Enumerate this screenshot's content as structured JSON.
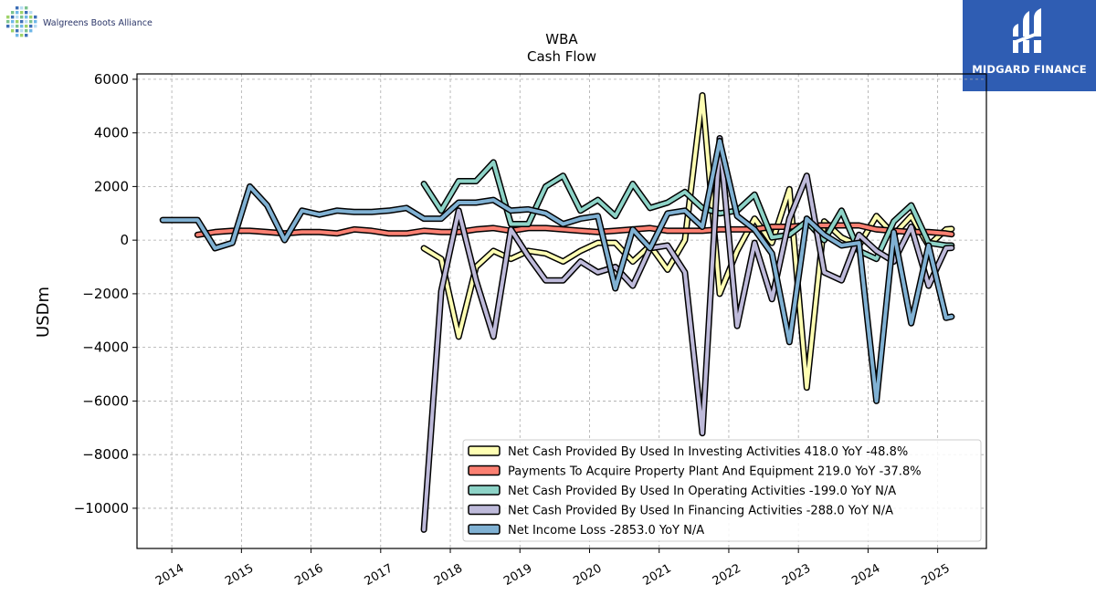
{
  "branding": {
    "company_logo_text": "Walgreens Boots Alliance",
    "publisher_logo_text": "MIDGARD FINANCE"
  },
  "colors": {
    "investing": "#ffffb3",
    "capex": "#fb8072",
    "operating": "#8dd3c7",
    "financing": "#bebada",
    "net_income": "#80b1d3",
    "publisher_bg": "#2f5db3"
  },
  "chart_data": {
    "type": "line",
    "title": "WBA",
    "subtitle": "Cash Flow",
    "xlabel": "",
    "ylabel": "USDm",
    "xlim": [
      2013.5,
      2025.7
    ],
    "ylim": [
      -11500,
      6200
    ],
    "x_ticks": [
      2014,
      2015,
      2016,
      2017,
      2018,
      2019,
      2020,
      2021,
      2022,
      2023,
      2024,
      2025
    ],
    "y_ticks": [
      6000,
      4000,
      2000,
      0,
      -2000,
      -4000,
      -6000,
      -8000,
      -10000
    ],
    "y_tick_labels": [
      "6000",
      "4000",
      "2000",
      "0",
      "−2000",
      "−4000",
      "−6000",
      "−8000",
      "−10000"
    ],
    "grid": true,
    "legend_position": "lower-right",
    "series": [
      {
        "key": "investing",
        "name": "Net Cash Provided By Used In Investing Activities",
        "legend_label": "Net Cash Provided By Used In Investing Activities  418.0 YoY -48.8%",
        "x": [
          2017.62,
          2017.87,
          2018.12,
          2018.37,
          2018.62,
          2018.87,
          2019.12,
          2019.37,
          2019.62,
          2019.87,
          2020.12,
          2020.37,
          2020.62,
          2020.87,
          2021.12,
          2021.37,
          2021.62,
          2021.87,
          2022.12,
          2022.37,
          2022.62,
          2022.87,
          2023.12,
          2023.37,
          2023.62,
          2023.87,
          2024.12,
          2024.37,
          2024.62,
          2024.87,
          2025.12,
          2025.2
        ],
        "y": [
          -300,
          -700,
          -3600,
          -1000,
          -400,
          -700,
          -400,
          -500,
          -800,
          -400,
          -100,
          -100,
          -800,
          -200,
          -1100,
          0,
          5400,
          -2000,
          -400,
          800,
          -100,
          1900,
          -5500,
          700,
          100,
          -200,
          900,
          200,
          900,
          -200,
          400,
          418
        ]
      },
      {
        "key": "capex",
        "name": "Payments To Acquire Property Plant And Equipment",
        "legend_label": "Payments To Acquire Property Plant And Equipment  219.0 YoY -37.8%",
        "x": [
          2014.37,
          2014.62,
          2014.87,
          2015.12,
          2015.37,
          2015.62,
          2015.87,
          2016.12,
          2016.37,
          2016.62,
          2016.87,
          2017.12,
          2017.37,
          2017.62,
          2017.87,
          2018.12,
          2018.37,
          2018.62,
          2018.87,
          2019.12,
          2019.37,
          2019.62,
          2019.87,
          2020.12,
          2020.37,
          2020.62,
          2020.87,
          2021.12,
          2021.37,
          2021.62,
          2021.87,
          2022.12,
          2022.37,
          2022.62,
          2022.87,
          2023.12,
          2023.37,
          2023.62,
          2023.87,
          2024.12,
          2024.37,
          2024.62,
          2024.87,
          2025.12,
          2025.2
        ],
        "y": [
          200,
          300,
          350,
          350,
          300,
          250,
          300,
          300,
          250,
          400,
          350,
          250,
          250,
          350,
          300,
          300,
          400,
          450,
          350,
          450,
          450,
          400,
          350,
          300,
          350,
          400,
          450,
          350,
          350,
          350,
          400,
          400,
          400,
          500,
          500,
          550,
          550,
          550,
          550,
          400,
          350,
          300,
          300,
          250,
          219
        ]
      },
      {
        "key": "operating",
        "name": "Net Cash Provided By Used In Operating Activities",
        "legend_label": "Net Cash Provided By Used In Operating Activities  -199.0 YoY N/A",
        "x": [
          2017.62,
          2017.87,
          2018.12,
          2018.37,
          2018.62,
          2018.87,
          2019.12,
          2019.37,
          2019.62,
          2019.87,
          2020.12,
          2020.37,
          2020.62,
          2020.87,
          2021.12,
          2021.37,
          2021.62,
          2021.87,
          2022.12,
          2022.37,
          2022.62,
          2022.87,
          2023.12,
          2023.37,
          2023.62,
          2023.87,
          2024.12,
          2024.37,
          2024.62,
          2024.87,
          2025.12,
          2025.2
        ],
        "y": [
          2100,
          1100,
          2200,
          2200,
          2900,
          600,
          600,
          2000,
          2400,
          1100,
          1500,
          900,
          2100,
          1200,
          1400,
          1800,
          1200,
          1000,
          1100,
          1700,
          100,
          200,
          700,
          0,
          1100,
          -400,
          -700,
          700,
          1300,
          -100,
          -200,
          -199
        ]
      },
      {
        "key": "financing",
        "name": "Net Cash Provided By Used In Financing Activities",
        "legend_label": "Net Cash Provided By Used In Financing Activities  -288.0 YoY N/A",
        "x": [
          2017.62,
          2017.87,
          2018.12,
          2018.37,
          2018.62,
          2018.87,
          2019.12,
          2019.37,
          2019.62,
          2019.87,
          2020.12,
          2020.37,
          2020.62,
          2020.87,
          2021.12,
          2021.37,
          2021.62,
          2021.87,
          2022.12,
          2022.37,
          2022.62,
          2022.87,
          2023.12,
          2023.37,
          2023.62,
          2023.87,
          2024.12,
          2024.37,
          2024.62,
          2024.87,
          2025.12,
          2025.2
        ],
        "y": [
          -10800,
          -1900,
          1100,
          -1500,
          -3600,
          400,
          -600,
          -1500,
          -1500,
          -800,
          -1200,
          -1000,
          -1700,
          -300,
          -200,
          -1200,
          -7200,
          3800,
          -3200,
          -100,
          -2200,
          800,
          2400,
          -1200,
          -1500,
          200,
          -400,
          -800,
          500,
          -1700,
          -300,
          -288
        ]
      },
      {
        "key": "net_income",
        "name": "Net Income Loss",
        "legend_label": "Net Income Loss  -2853.0 YoY N/A",
        "x": [
          2013.87,
          2014.12,
          2014.37,
          2014.62,
          2014.87,
          2015.12,
          2015.37,
          2015.62,
          2015.87,
          2016.12,
          2016.37,
          2016.62,
          2016.87,
          2017.12,
          2017.37,
          2017.62,
          2017.87,
          2018.12,
          2018.37,
          2018.62,
          2018.87,
          2019.12,
          2019.37,
          2019.62,
          2019.87,
          2020.12,
          2020.37,
          2020.62,
          2020.87,
          2021.12,
          2021.37,
          2021.62,
          2021.87,
          2022.12,
          2022.37,
          2022.62,
          2022.87,
          2023.12,
          2023.37,
          2023.62,
          2023.87,
          2024.12,
          2024.37,
          2024.62,
          2024.87,
          2025.12,
          2025.2
        ],
        "y": [
          750,
          750,
          750,
          -300,
          -100,
          2000,
          1300,
          0,
          1100,
          950,
          1100,
          1050,
          1050,
          1100,
          1200,
          800,
          800,
          1400,
          1400,
          1500,
          1100,
          1150,
          1000,
          600,
          800,
          900,
          -1800,
          400,
          -300,
          1000,
          1100,
          500,
          3700,
          900,
          400,
          -500,
          -3800,
          800,
          200,
          -200,
          -100,
          -6000,
          300,
          -3100,
          -200,
          -2900,
          -2853
        ]
      }
    ]
  }
}
